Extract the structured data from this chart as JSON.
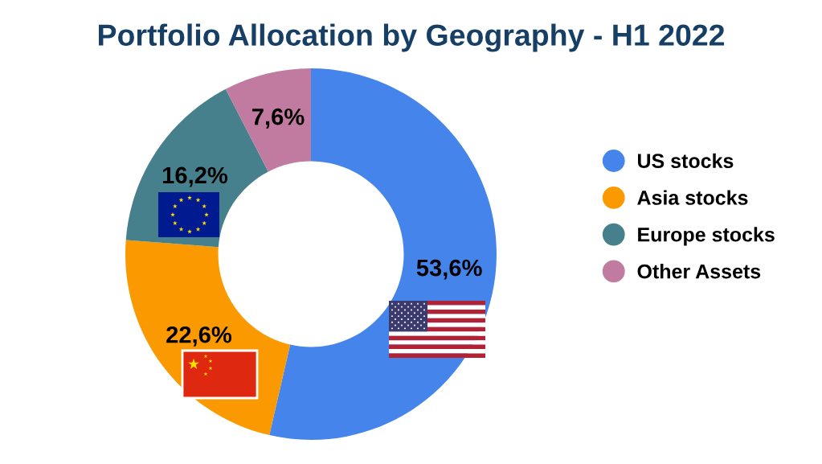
{
  "chart_data": {
    "type": "donut",
    "title": "Portfolio Allocation by Geography - H1 2022",
    "categories": [
      "US stocks",
      "Asia stocks",
      "Europe stocks",
      "Other Assets"
    ],
    "values": [
      53.6,
      22.6,
      16.2,
      7.6
    ],
    "colors": [
      "#4585eb",
      "#fb9a00",
      "#46808c",
      "#c27ba0"
    ],
    "value_labels": [
      "53,6%",
      "22,6%",
      "16,2%",
      "7,6%"
    ],
    "legend": "right"
  }
}
